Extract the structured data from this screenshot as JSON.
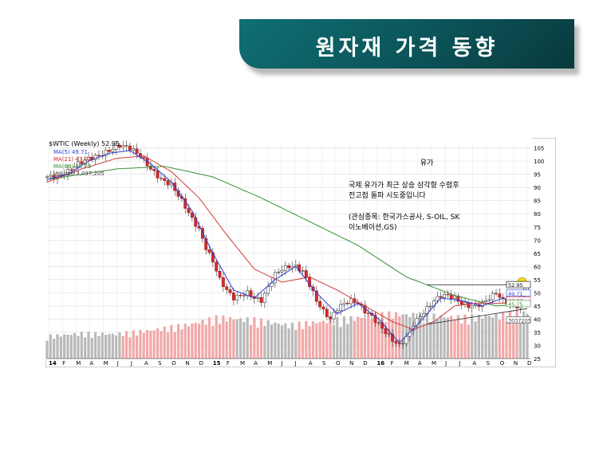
{
  "slide_title": "원자재 가격 동향",
  "chart_data": {
    "type": "candlestick-with-volume",
    "header": {
      "symbol_label": "$WTIC (Weekly) 52.95",
      "ma5_label": "MA(5) 49.71",
      "ma21_label": "MA(21) 47.02",
      "ma89_label": "MA(89) 45.75",
      "volume_label": "Volume 3,037,205"
    },
    "title": "유가",
    "annotation_line1": "국제 유가가 최근 상승 삼각형 수렴후",
    "annotation_line2": "전고점 돌파 시도중입니다",
    "annotation_line3": "(관심종목: 한국가스공사, S-OIL, SK",
    "annotation_line4": "이노베이션,GS)",
    "y_ticks": [
      "105",
      "100",
      "95",
      "90",
      "85",
      "80",
      "75",
      "70",
      "65",
      "60",
      "55",
      "50",
      "45",
      "40",
      "35",
      "30",
      "25"
    ],
    "ylim": [
      25,
      107
    ],
    "x_ticks": [
      "14",
      "F",
      "M",
      "A",
      "M",
      "J",
      "J",
      "A",
      "S",
      "O",
      "N",
      "D",
      "15",
      "F",
      "M",
      "A",
      "M",
      "J",
      "J",
      "A",
      "S",
      "O",
      "N",
      "D",
      "16",
      "F",
      "M",
      "A",
      "M",
      "J",
      "J",
      "A",
      "S",
      "O",
      "N",
      "D"
    ],
    "price_tags": [
      "52.95",
      "49.71",
      "47.02",
      "45.75",
      "3037205"
    ],
    "price_points": [
      [
        0,
        94
      ],
      [
        3,
        94
      ],
      [
        6,
        96
      ],
      [
        9,
        99
      ],
      [
        12,
        101
      ],
      [
        15,
        102
      ],
      [
        18,
        104
      ],
      [
        21,
        106
      ],
      [
        24,
        105
      ],
      [
        27,
        102
      ],
      [
        30,
        97
      ],
      [
        33,
        93
      ],
      [
        36,
        91
      ],
      [
        39,
        85
      ],
      [
        42,
        78
      ],
      [
        44,
        74
      ],
      [
        46,
        67
      ],
      [
        48,
        62
      ],
      [
        50,
        55
      ],
      [
        52,
        51
      ],
      [
        54,
        48
      ],
      [
        56,
        49
      ],
      [
        58,
        50
      ],
      [
        60,
        48
      ],
      [
        62,
        47
      ],
      [
        64,
        52
      ],
      [
        66,
        57
      ],
      [
        68,
        59
      ],
      [
        70,
        60
      ],
      [
        72,
        60
      ],
      [
        74,
        58
      ],
      [
        76,
        53
      ],
      [
        78,
        47
      ],
      [
        80,
        43
      ],
      [
        82,
        40
      ],
      [
        84,
        44
      ],
      [
        86,
        46
      ],
      [
        88,
        47
      ],
      [
        90,
        46
      ],
      [
        92,
        43
      ],
      [
        94,
        41
      ],
      [
        96,
        38
      ],
      [
        98,
        35
      ],
      [
        100,
        32
      ],
      [
        102,
        30
      ],
      [
        104,
        33
      ],
      [
        106,
        38
      ],
      [
        108,
        41
      ],
      [
        110,
        44
      ],
      [
        112,
        47
      ],
      [
        114,
        49
      ],
      [
        116,
        49
      ],
      [
        118,
        48
      ],
      [
        120,
        46
      ],
      [
        122,
        45
      ],
      [
        124,
        45
      ],
      [
        126,
        46
      ],
      [
        128,
        48
      ],
      [
        130,
        50
      ],
      [
        132,
        47
      ],
      [
        134,
        46
      ],
      [
        136,
        45
      ],
      [
        138,
        51
      ],
      [
        139,
        53
      ]
    ],
    "ma5_points": [
      [
        0,
        93
      ],
      [
        6,
        95
      ],
      [
        12,
        100
      ],
      [
        18,
        103
      ],
      [
        24,
        104
      ],
      [
        30,
        99
      ],
      [
        36,
        92
      ],
      [
        42,
        81
      ],
      [
        48,
        65
      ],
      [
        54,
        51
      ],
      [
        60,
        48
      ],
      [
        66,
        55
      ],
      [
        72,
        60
      ],
      [
        78,
        50
      ],
      [
        84,
        42
      ],
      [
        90,
        46
      ],
      [
        96,
        40
      ],
      [
        102,
        31
      ],
      [
        108,
        39
      ],
      [
        114,
        48
      ],
      [
        120,
        47
      ],
      [
        126,
        45
      ],
      [
        132,
        48
      ],
      [
        136,
        45
      ],
      [
        139,
        49.7
      ]
    ],
    "ma21_points": [
      [
        0,
        92
      ],
      [
        10,
        97
      ],
      [
        20,
        101
      ],
      [
        28,
        102
      ],
      [
        36,
        96
      ],
      [
        44,
        86
      ],
      [
        52,
        72
      ],
      [
        60,
        59
      ],
      [
        68,
        54
      ],
      [
        76,
        56
      ],
      [
        84,
        51
      ],
      [
        92,
        45
      ],
      [
        100,
        39
      ],
      [
        106,
        36
      ],
      [
        112,
        39
      ],
      [
        118,
        45
      ],
      [
        124,
        46
      ],
      [
        132,
        46
      ],
      [
        139,
        47
      ]
    ],
    "ma89_points": [
      [
        0,
        93
      ],
      [
        20,
        97
      ],
      [
        34,
        98
      ],
      [
        48,
        94
      ],
      [
        62,
        86
      ],
      [
        76,
        77
      ],
      [
        90,
        68
      ],
      [
        104,
        56
      ],
      [
        118,
        49
      ],
      [
        130,
        45
      ],
      [
        139,
        45.75
      ]
    ],
    "volume_points": [
      [
        0,
        0.3
      ],
      [
        10,
        0.34
      ],
      [
        20,
        0.33
      ],
      [
        30,
        0.38
      ],
      [
        40,
        0.45
      ],
      [
        50,
        0.55
      ],
      [
        60,
        0.52
      ],
      [
        70,
        0.45
      ],
      [
        80,
        0.5
      ],
      [
        90,
        0.55
      ],
      [
        100,
        0.6
      ],
      [
        110,
        0.58
      ],
      [
        120,
        0.55
      ],
      [
        130,
        0.58
      ],
      [
        139,
        0.62
      ]
    ]
  }
}
